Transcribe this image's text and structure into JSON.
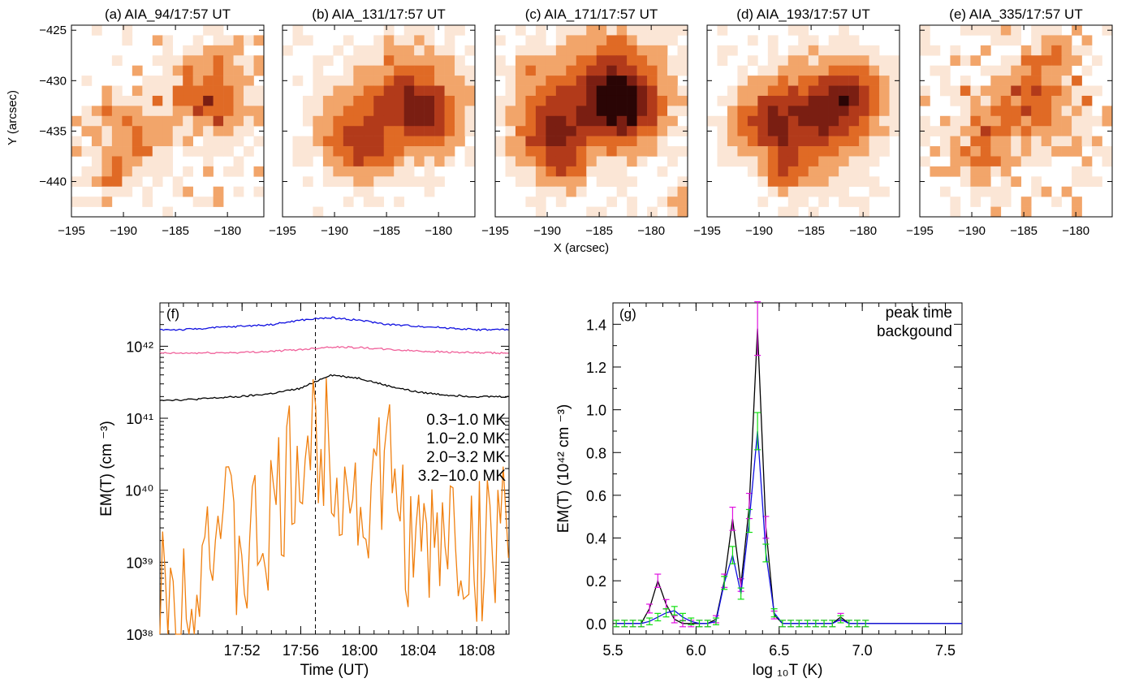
{
  "panels_top": [
    {
      "title": "(a) AIA_94/17:57 UT",
      "seed": 11,
      "density": 0.22
    },
    {
      "title": "(b) AIA_131/17:57 UT",
      "seed": 23,
      "density": 0.0
    },
    {
      "title": "(c) AIA_171/17:57 UT",
      "seed": 37,
      "density": 0.0
    },
    {
      "title": "(d) AIA_193/17:57 UT",
      "seed": 41,
      "density": 0.0
    },
    {
      "title": "(e) AIA_335/17:57 UT",
      "seed": 53,
      "density": 0.3
    }
  ],
  "map_axes": {
    "xlabel": "X (arcsec)",
    "ylabel": "Y (arcsec)",
    "xticks": [
      "−195",
      "−190",
      "−185",
      "−180"
    ],
    "yticks": [
      "−425",
      "−430",
      "−435",
      "−440"
    ],
    "xrange": [
      -195,
      -176.5
    ],
    "yrange": [
      -443.5,
      -424.5
    ]
  },
  "colors": {
    "map_scale": [
      "#fbe6d6",
      "#f2a56a",
      "#e06a25",
      "#b23a1a",
      "#7a1e12",
      "#2a0505"
    ],
    "black": "#000000",
    "pink": "#f0609a",
    "blue": "#1010e0",
    "orange": "#f08010",
    "magenta": "#e010e0",
    "green": "#10e010"
  },
  "chart_data": [
    {
      "type": "line",
      "panel_label": "(f)",
      "xlabel": "Time (UT)",
      "ylabel": "EM(T) (cm ⁻³)",
      "yscale": "log",
      "ylim": [
        1e+38,
        4e+42
      ],
      "xticks": [
        "17:52",
        "17:56",
        "18:00",
        "18:04",
        "18:08"
      ],
      "yticks": [
        "10³⁸",
        "10³⁹",
        "10⁴⁰",
        "10⁴¹",
        "10⁴²"
      ],
      "marker_time": "17:57",
      "time_range": [
        "17:48",
        "18:10"
      ],
      "series": [
        {
          "name": "0.3−1.0 MK",
          "color": "#000000",
          "x": [
            "17:48",
            "17:50",
            "17:52",
            "17:54",
            "17:56",
            "17:58",
            "18:00",
            "18:02",
            "18:04",
            "18:06",
            "18:08",
            "18:10"
          ],
          "y": [
            1.8e+41,
            1.9e+41,
            2e+41,
            2.2e+41,
            2.6e+41,
            4e+41,
            3.6e+41,
            2.8e+41,
            2.3e+41,
            2.1e+41,
            2e+41,
            2e+41
          ]
        },
        {
          "name": "1.0−2.0 MK",
          "color": "#f0609a",
          "x": [
            "17:48",
            "17:50",
            "17:52",
            "17:54",
            "17:56",
            "17:58",
            "18:00",
            "18:02",
            "18:04",
            "18:06",
            "18:08",
            "18:10"
          ],
          "y": [
            8e+41,
            8.1e+41,
            8.2e+41,
            8.5e+41,
            9e+41,
            9.8e+41,
            9.6e+41,
            9e+41,
            8.6e+41,
            8.3e+41,
            8.1e+41,
            8e+41
          ]
        },
        {
          "name": "2.0−3.2 MK",
          "color": "#1010e0",
          "x": [
            "17:48",
            "17:50",
            "17:52",
            "17:54",
            "17:56",
            "17:58",
            "18:00",
            "18:02",
            "18:04",
            "18:06",
            "18:08",
            "18:10"
          ],
          "y": [
            1.7e+42,
            1.8e+42,
            1.9e+42,
            2e+42,
            2.3e+42,
            2.5e+42,
            2.3e+42,
            2e+42,
            1.9e+42,
            1.8e+42,
            1.7e+42,
            1.7e+42
          ]
        },
        {
          "name": "3.2−10.0 MK",
          "color": "#f08010",
          "x": [
            "17:48",
            "17:50",
            "17:52",
            "17:54",
            "17:56",
            "17:58",
            "18:00",
            "18:02",
            "18:04",
            "18:06",
            "18:08",
            "18:10"
          ],
          "y": [
            3e+38,
            5e+39,
            1e+39,
            3e+39,
            3e+40,
            5e+40,
            5e+39,
            2e+40,
            1e+39,
            3e+39,
            1e+39,
            7e+39
          ]
        }
      ]
    },
    {
      "type": "line",
      "panel_label": "(g)",
      "xlabel": "log ₁₀T (K)",
      "ylabel": "EM(T) (10⁴² cm ⁻³)",
      "xlim": [
        5.5,
        7.6
      ],
      "ylim": [
        -0.05,
        1.5
      ],
      "xticks": [
        "5.5",
        "6.0",
        "6.5",
        "7.0",
        "7.5"
      ],
      "yticks": [
        "0.0",
        "0.2",
        "0.4",
        "0.6",
        "0.8",
        "1.0",
        "1.2",
        "1.4"
      ],
      "series": [
        {
          "name": "peak time",
          "color": "#000000",
          "error_color": "#e010e0",
          "x": [
            5.52,
            5.57,
            5.62,
            5.67,
            5.72,
            5.77,
            5.82,
            5.87,
            5.92,
            5.97,
            6.02,
            6.07,
            6.12,
            6.17,
            6.22,
            6.27,
            6.32,
            6.37,
            6.42,
            6.47,
            6.52,
            6.57,
            6.62,
            6.67,
            6.72,
            6.77,
            6.82,
            6.87,
            6.92,
            6.97,
            7.02,
            7.5,
            7.6
          ],
          "y": [
            0.0,
            0.0,
            0.0,
            0.0,
            0.07,
            0.2,
            0.09,
            0.02,
            0.0,
            0.0,
            0.0,
            0.0,
            0.02,
            0.2,
            0.49,
            0.18,
            0.55,
            1.38,
            0.45,
            0.04,
            0.0,
            0.0,
            0.0,
            0.0,
            0.0,
            0.0,
            0.0,
            0.03,
            0.0,
            0.0,
            0.0,
            0.0,
            0.0
          ]
        },
        {
          "name": "backgound",
          "color": "#1010e0",
          "error_color": "#10e010",
          "x": [
            5.52,
            5.57,
            5.62,
            5.67,
            5.72,
            5.77,
            5.82,
            5.87,
            5.92,
            5.97,
            6.02,
            6.07,
            6.12,
            6.17,
            6.22,
            6.27,
            6.32,
            6.37,
            6.42,
            6.47,
            6.52,
            6.57,
            6.62,
            6.67,
            6.72,
            6.77,
            6.82,
            6.87,
            6.92,
            6.97,
            7.02,
            7.5,
            7.6
          ],
          "y": [
            0.0,
            0.0,
            0.0,
            0.0,
            0.01,
            0.03,
            0.05,
            0.06,
            0.03,
            0.01,
            0.0,
            0.0,
            0.01,
            0.19,
            0.32,
            0.14,
            0.48,
            0.9,
            0.33,
            0.05,
            0.0,
            0.0,
            0.0,
            0.0,
            0.0,
            0.0,
            0.0,
            0.02,
            0.0,
            0.0,
            0.0,
            0.0,
            0.0
          ]
        }
      ]
    }
  ]
}
